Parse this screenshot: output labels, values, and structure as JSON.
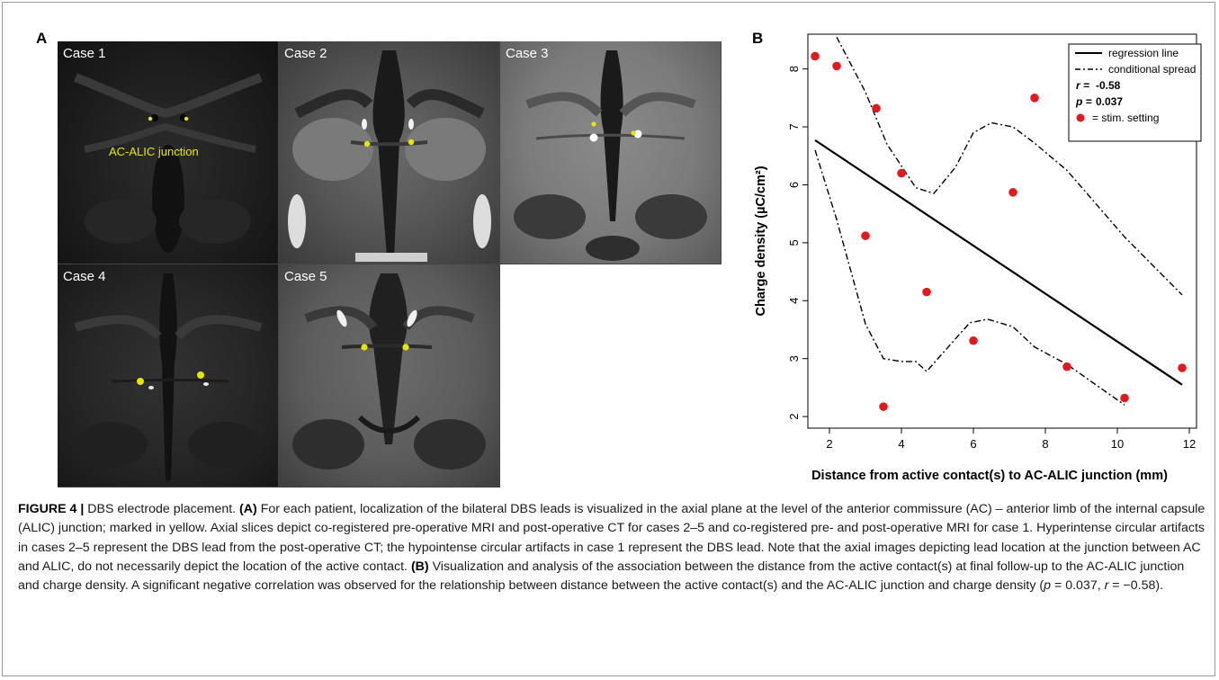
{
  "panel_a": {
    "letter": "A",
    "cases": [
      {
        "label": "Case 1"
      },
      {
        "label": "Case 2"
      },
      {
        "label": "Case 3"
      },
      {
        "label": "Case 4"
      },
      {
        "label": "Case 5"
      }
    ],
    "annotation": "AC-ALIC junction",
    "colors": {
      "marker": "#e6e600"
    }
  },
  "panel_b": {
    "letter": "B"
  },
  "chart_data": {
    "type": "scatter",
    "xlabel": "Distance from active contact(s) to AC-ALIC junction (mm)",
    "ylabel": "Charge density (µC/cm²)",
    "xlim": [
      1.4,
      12.2
    ],
    "ylim": [
      1.8,
      8.6
    ],
    "xticks": [
      2,
      4,
      6,
      8,
      10,
      12
    ],
    "yticks": [
      2,
      3,
      4,
      5,
      6,
      7,
      8
    ],
    "grid": false,
    "legend_position": "top-right",
    "legend": {
      "regression": "regression line",
      "spread": "conditional spread",
      "r_label": "r =",
      "r_value": "-0.58",
      "p_label": "p =",
      "p_value": "0.037",
      "points": "= stim. setting"
    },
    "points": [
      {
        "x": 1.6,
        "y": 8.22
      },
      {
        "x": 2.2,
        "y": 8.05
      },
      {
        "x": 3.3,
        "y": 7.32
      },
      {
        "x": 7.7,
        "y": 7.5
      },
      {
        "x": 4.0,
        "y": 6.2
      },
      {
        "x": 7.1,
        "y": 5.87
      },
      {
        "x": 3.0,
        "y": 5.12
      },
      {
        "x": 4.7,
        "y": 4.15
      },
      {
        "x": 6.0,
        "y": 3.31
      },
      {
        "x": 8.6,
        "y": 2.86
      },
      {
        "x": 11.8,
        "y": 2.84
      },
      {
        "x": 10.2,
        "y": 2.32
      },
      {
        "x": 3.5,
        "y": 2.17
      }
    ],
    "regression_line": [
      {
        "x": 1.6,
        "y": 6.77
      },
      {
        "x": 11.8,
        "y": 2.55
      }
    ],
    "spread_upper": [
      {
        "x": 2.2,
        "y": 8.55
      },
      {
        "x": 3.0,
        "y": 7.6
      },
      {
        "x": 3.6,
        "y": 6.7
      },
      {
        "x": 4.4,
        "y": 5.95
      },
      {
        "x": 4.9,
        "y": 5.85
      },
      {
        "x": 5.5,
        "y": 6.3
      },
      {
        "x": 6.0,
        "y": 6.9
      },
      {
        "x": 6.5,
        "y": 7.07
      },
      {
        "x": 7.1,
        "y": 7.0
      },
      {
        "x": 7.7,
        "y": 6.72
      },
      {
        "x": 8.6,
        "y": 6.25
      },
      {
        "x": 10.2,
        "y": 5.1
      },
      {
        "x": 11.8,
        "y": 4.1
      }
    ],
    "spread_lower": [
      {
        "x": 1.6,
        "y": 6.6
      },
      {
        "x": 2.2,
        "y": 5.4
      },
      {
        "x": 3.0,
        "y": 3.6
      },
      {
        "x": 3.5,
        "y": 3.0
      },
      {
        "x": 4.0,
        "y": 2.95
      },
      {
        "x": 4.4,
        "y": 2.95
      },
      {
        "x": 4.7,
        "y": 2.78
      },
      {
        "x": 5.3,
        "y": 3.2
      },
      {
        "x": 5.9,
        "y": 3.62
      },
      {
        "x": 6.4,
        "y": 3.68
      },
      {
        "x": 7.1,
        "y": 3.55
      },
      {
        "x": 7.7,
        "y": 3.2
      },
      {
        "x": 8.6,
        "y": 2.9
      },
      {
        "x": 9.4,
        "y": 2.55
      },
      {
        "x": 10.2,
        "y": 2.2
      }
    ],
    "colors": {
      "points": "#e31a1c",
      "lines": "#000000"
    }
  },
  "caption": {
    "figure_label": "FIGURE 4 |",
    "title": " DBS electrode placement. ",
    "a_label": "(A)",
    "a_text": " For each patient, localization of the bilateral DBS leads is visualized in the axial plane at the level of the anterior commissure (AC) – anterior limb of the internal capsule (ALIC) junction; marked in yellow. Axial slices depict co-registered pre-operative MRI and post-operative CT for cases 2–5 and co-registered pre- and post-operative MRI for case 1. Hyperintense circular artifacts in cases 2–5 represent the DBS lead from the post-operative CT; the hypointense circular artifacts in case 1 represent the DBS lead. Note that the axial images depicting lead location at the junction between AC and ALIC, do not necessarily depict the location of the active contact. ",
    "b_label": "(B)",
    "b_text": " Visualization and analysis of the association between the distance from the active contact(s) at final follow-up to the AC-ALIC junction and charge density. A significant negative correlation was observed for the relationship between distance between the active contact(s) and the AC-ALIC junction and charge density (",
    "p_sym": "p",
    "stat_text": " = 0.037, ",
    "r_sym": "r",
    "stat_text2": " = −0.58)."
  }
}
